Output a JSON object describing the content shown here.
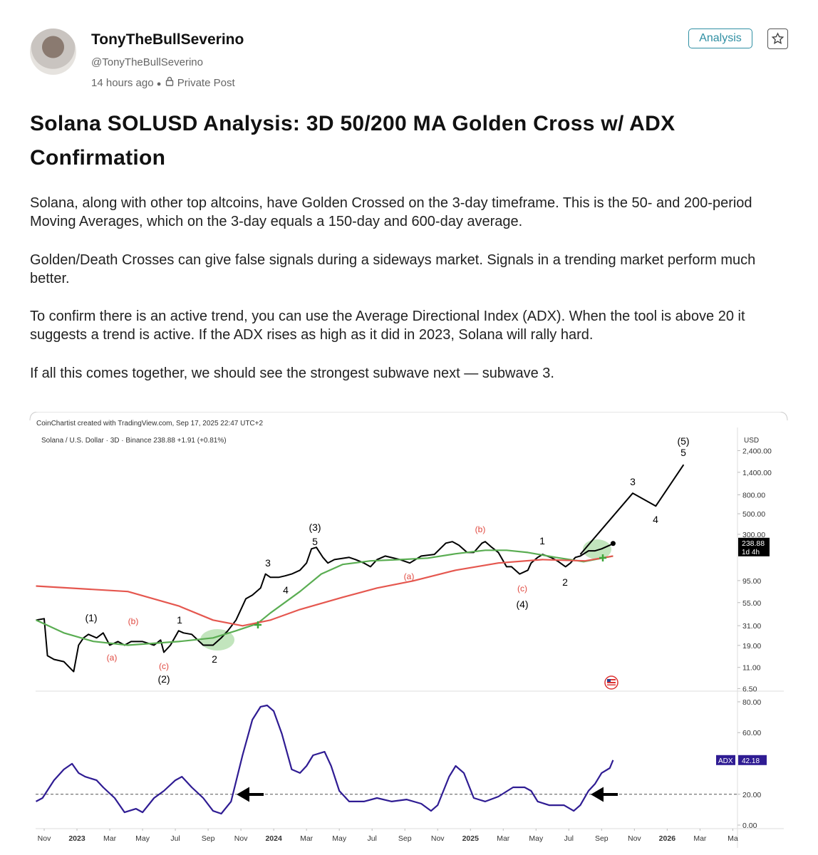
{
  "post": {
    "author": "TonyTheBullSeverino",
    "handle": "@TonyTheBullSeverino",
    "time": "14 hours ago",
    "visibility": "Private Post",
    "tag": "Analysis",
    "title": "Solana SOLUSD Analysis: 3D 50/200 MA Golden Cross w/ ADX Confirmation",
    "paragraphs": [
      "Solana, along with other top altcoins, have Golden Crossed on the 3-day timeframe. This is the 50- and 200-period Moving Averages, which on the 3-day equals a 150-day and 600-day average.",
      "Golden/Death Crosses can give false signals during a sideways market. Signals in a trending market perform much better.",
      "To confirm there is an active trend, you can use the Average Directional Index (ADX). When the tool is above 20 it suggests a trend is active. If the ADX rises as high as it did in 2023, Solana will rally hard.",
      "If all this comes together, we should see the strongest subwave next — subwave 3."
    ]
  },
  "chart_data": [
    {
      "type": "line",
      "credit": "CoinChartist created with TradingView.com, Sep 17, 2025 22:47 UTC+2",
      "legend": "Solana / U.S. Dollar · 3D · Binance  238.88  +1.91 (+0.81%)",
      "axis_unit": "USD",
      "countdown": "1d 4h",
      "log_scale": true,
      "xlim": [
        -0.5,
        42.2
      ],
      "ylim": [
        6.1,
        3900
      ],
      "yticks": [
        {
          "value": 6.5,
          "label": "6.50"
        },
        {
          "value": 11,
          "label": "11.00"
        },
        {
          "value": 19,
          "label": "19.00"
        },
        {
          "value": 31,
          "label": "31.00"
        },
        {
          "value": 55,
          "label": "55.00"
        },
        {
          "value": 95,
          "label": "95.00"
        },
        {
          "value": 300,
          "label": "300.00"
        },
        {
          "value": 500,
          "label": "500.00"
        },
        {
          "value": 800,
          "label": "800.00"
        },
        {
          "value": 1400,
          "label": "1,400.00"
        },
        {
          "value": 2400,
          "label": "2,400.00"
        }
      ],
      "series": [
        {
          "color": "#000000",
          "x": [
            -0.5,
            0,
            0.2,
            0.6,
            1.2,
            1.7,
            1.8,
            2.1,
            2.4,
            2.7,
            3.2,
            3.6,
            4.0,
            4.5,
            4.9,
            5.3,
            6.0,
            6.7,
            7.1,
            7.3,
            7.7,
            8.2,
            8.5,
            9.0,
            9.7,
            10.3,
            10.8,
            11.2,
            11.7,
            12.1,
            12.3,
            12.7,
            13.2,
            13.5,
            13.8,
            14.3,
            14.7,
            15.1,
            15.6,
            16.0,
            16.3,
            16.6,
            17.0,
            17.3,
            17.7,
            18.6,
            19.0,
            19.5,
            19.9,
            20.3,
            20.8,
            21.7,
            22.3,
            23.0,
            23.8,
            24.5,
            24.9,
            25.3,
            25.8,
            26.2,
            26.7,
            26.9,
            27.3,
            27.7,
            28.2,
            28.5,
            29.0,
            29.5,
            29.7,
            30.1,
            30.4,
            30.9,
            31.3,
            31.8,
            32.1,
            32.4,
            32.7,
            33.2,
            33.6,
            34.0,
            34.5,
            34.7
          ],
          "values": [
            35.6,
            36.9,
            14.7,
            13.4,
            12.7,
            10.3,
            9.9,
            19.1,
            22.9,
            25.0,
            22.9,
            25.9,
            19.1,
            20.9,
            19.1,
            20.9,
            20.9,
            19.1,
            21.7,
            16.0,
            19.1,
            27.3,
            25.9,
            25.0,
            19.1,
            19.1,
            22.9,
            27.3,
            35.6,
            50.7,
            60.5,
            66.2,
            79,
            112,
            103,
            103,
            107,
            112,
            123,
            147,
            209,
            217,
            169,
            147,
            160,
            169,
            160,
            147,
            134,
            160,
            175,
            160,
            147,
            175,
            182,
            241,
            250,
            229,
            191,
            191,
            241,
            250,
            217,
            191,
            134,
            134,
            112,
            123,
            147,
            169,
            182,
            169,
            155,
            134,
            147,
            169,
            175,
            199,
            199,
            209,
            229,
            238.88
          ]
        },
        {
          "color": "#5aad52",
          "x": [
            -0.5,
            1.2,
            3.0,
            5.1,
            8.2,
            10.3,
            11.7,
            13.0,
            13.8,
            15.6,
            16.9,
            18.2,
            19.9,
            21.7,
            23.4,
            25.1,
            26.9,
            28.2,
            29.5,
            31.2,
            32.9,
            34.7
          ],
          "values": [
            35.6,
            25.9,
            21,
            19.1,
            20.9,
            22.9,
            27.3,
            32.6,
            42.5,
            72.4,
            112,
            142,
            155,
            160,
            166,
            185,
            202,
            202,
            191,
            169,
            152,
            175
          ]
        },
        {
          "color": "#e5574f",
          "x": [
            -0.5,
            5.1,
            8.2,
            10.3,
            12.1,
            13.8,
            15.6,
            18.2,
            20.3,
            22.5,
            25.1,
            27.7,
            30.4,
            33.0,
            34.7
          ],
          "values": [
            83,
            72.4,
            50.7,
            35.6,
            30.9,
            35.6,
            46.4,
            62.8,
            79,
            94.3,
            123,
            147,
            160,
            155,
            175
          ]
        },
        {
          "color": "#000000",
          "x": [
            32.7,
            35.9,
            37.3,
            39.0
          ],
          "values": [
            182,
            833,
            605,
            1690
          ]
        }
      ],
      "annotations": [
        {
          "text": "(1)",
          "color": "#000"
        },
        {
          "text": "(a)",
          "color": "#e0483f"
        },
        {
          "text": "(b)",
          "color": "#e0483f"
        },
        {
          "text": "(c)",
          "color": "#e0483f"
        },
        {
          "text": "(2)",
          "color": "#000"
        },
        {
          "text": "1",
          "color": "#000"
        },
        {
          "text": "2",
          "color": "#000"
        },
        {
          "text": "3",
          "color": "#000"
        },
        {
          "text": "4",
          "color": "#000"
        },
        {
          "text": "(3)",
          "color": "#000"
        },
        {
          "text": "5",
          "color": "#000"
        },
        {
          "text": "(a)",
          "color": "#e0483f"
        },
        {
          "text": "(b)",
          "color": "#e0483f"
        },
        {
          "text": "1",
          "color": "#000"
        },
        {
          "text": "(c)",
          "color": "#e0483f"
        },
        {
          "text": "(4)",
          "color": "#000"
        },
        {
          "text": "2",
          "color": "#000"
        },
        {
          "text": "3",
          "color": "#000"
        },
        {
          "text": "4",
          "color": "#000"
        },
        {
          "text": "(5)",
          "color": "#000"
        },
        {
          "text": "5",
          "color": "#000"
        }
      ]
    },
    {
      "type": "line",
      "xlim": [
        -0.5,
        42.2
      ],
      "ylim": [
        -2.3,
        86
      ],
      "reference_line": 20,
      "yticks": [
        {
          "value": 0,
          "label": "0.00"
        },
        {
          "value": 20,
          "label": "20.00"
        },
        {
          "value": 60,
          "label": "60.00"
        },
        {
          "value": 80,
          "label": "80.00"
        }
      ],
      "xticks": [
        {
          "value": 0,
          "label": "Nov"
        },
        {
          "value": 2,
          "label": "2023"
        },
        {
          "value": 4,
          "label": "Mar"
        },
        {
          "value": 6,
          "label": "May"
        },
        {
          "value": 8,
          "label": "Jul"
        },
        {
          "value": 10,
          "label": "Sep"
        },
        {
          "value": 12,
          "label": "Nov"
        },
        {
          "value": 14,
          "label": "2024"
        },
        {
          "value": 16,
          "label": "Mar"
        },
        {
          "value": 18,
          "label": "May"
        },
        {
          "value": 20,
          "label": "Jul"
        },
        {
          "value": 22,
          "label": "Sep"
        },
        {
          "value": 24,
          "label": "Nov"
        },
        {
          "value": 26,
          "label": "2025"
        },
        {
          "value": 28,
          "label": "Mar"
        },
        {
          "value": 30,
          "label": "May"
        },
        {
          "value": 32,
          "label": "Jul"
        },
        {
          "value": 34,
          "label": "Sep"
        },
        {
          "value": 36,
          "label": "Nov"
        },
        {
          "value": 38,
          "label": "2026"
        },
        {
          "value": 40,
          "label": "Mar"
        },
        {
          "value": 42,
          "label": "Ma"
        }
      ],
      "series": [
        {
          "name": "ADX",
          "color": "#2f1c93",
          "x": [
            -0.5,
            -0.1,
            0.6,
            1.2,
            1.7,
            2.1,
            2.5,
            3.2,
            3.6,
            4.3,
            4.9,
            5.6,
            6.0,
            6.7,
            7.3,
            8.0,
            8.4,
            9.0,
            9.7,
            10.3,
            10.8,
            11.4,
            12.1,
            12.7,
            13.2,
            13.6,
            14.0,
            14.5,
            15.1,
            15.6,
            16.0,
            16.4,
            17.1,
            17.5,
            18.0,
            18.6,
            19.5,
            20.3,
            21.2,
            22.1,
            23.0,
            23.6,
            24.0,
            24.7,
            25.1,
            25.6,
            26.2,
            26.9,
            27.7,
            28.6,
            29.3,
            29.7,
            30.1,
            30.8,
            31.7,
            32.3,
            32.7,
            33.2,
            33.6,
            34.0,
            34.5,
            34.7
          ],
          "values": [
            15.3,
            17.6,
            29.1,
            36.1,
            39.8,
            33.8,
            31.4,
            29.1,
            24.5,
            17.6,
            8.3,
            10.6,
            8.3,
            17.6,
            22.2,
            29.1,
            31.4,
            24.5,
            17.6,
            9.2,
            7.4,
            15.3,
            45.3,
            68.4,
            76.8,
            77.7,
            74.0,
            59.2,
            36.1,
            33.8,
            38.4,
            45.3,
            47.6,
            38.4,
            22.2,
            15.3,
            15.3,
            17.6,
            15.3,
            16.6,
            13.9,
            9.2,
            12.9,
            31.4,
            38.4,
            33.8,
            17.6,
            15.3,
            18.5,
            24.5,
            24.5,
            22.2,
            15.3,
            12.9,
            12.9,
            9.2,
            12.9,
            22.2,
            26.8,
            33.8,
            37.0,
            42.18
          ]
        }
      ]
    }
  ]
}
